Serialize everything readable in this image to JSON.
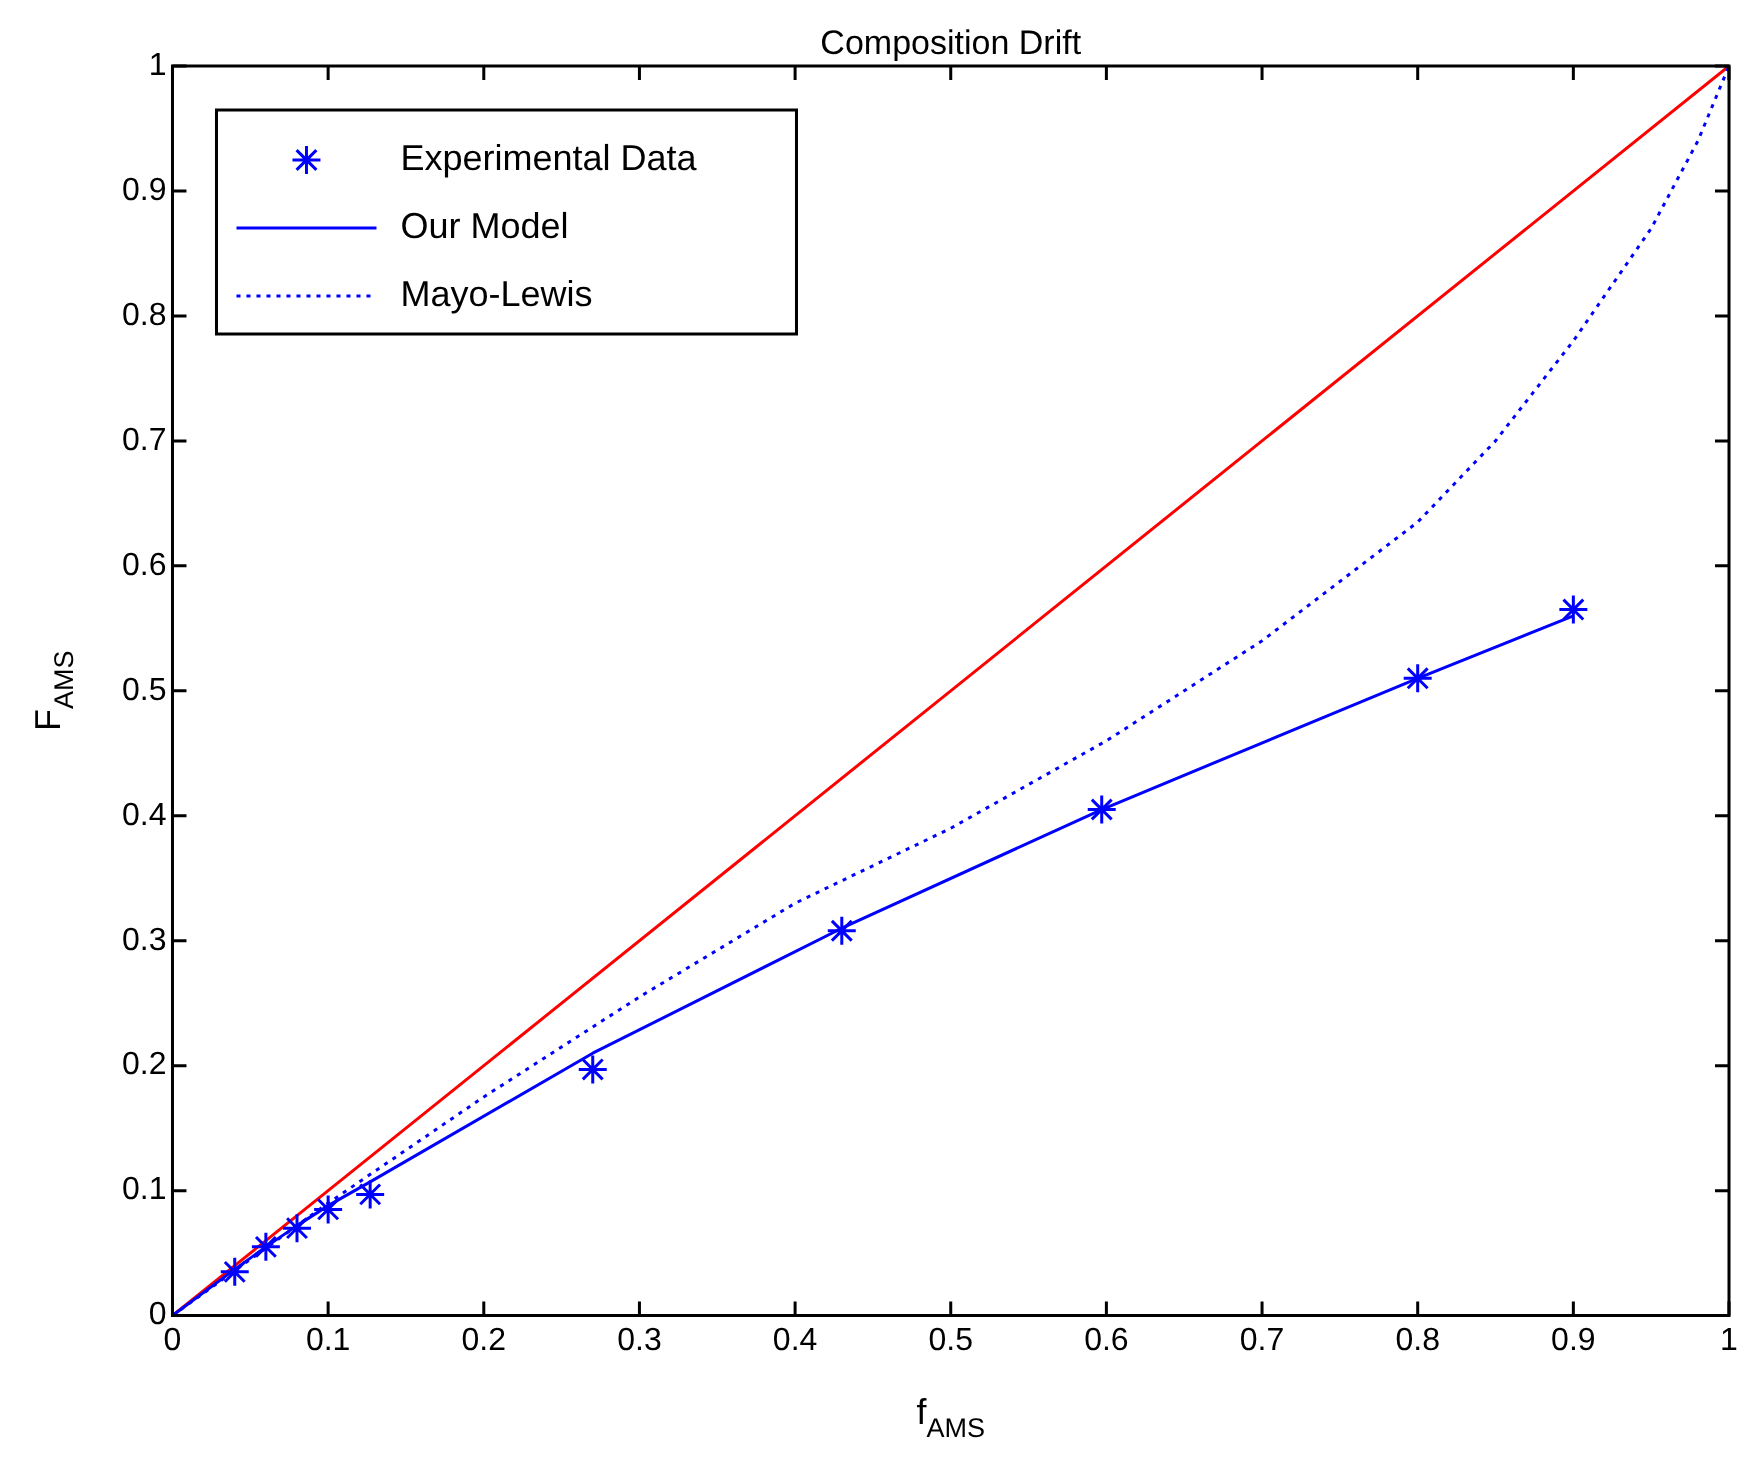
{
  "chart_data": {
    "type": "line",
    "title": "Composition Drift",
    "xlabel": "f$_{AMS}$",
    "ylabel": "F$_{AMS}$",
    "xlim": [
      0,
      1
    ],
    "ylim": [
      0,
      1
    ],
    "xticks": [
      0,
      0.1,
      0.2,
      0.3,
      0.4,
      0.5,
      0.6,
      0.7,
      0.8,
      0.9,
      1
    ],
    "yticks": [
      0,
      0.1,
      0.2,
      0.3,
      0.4,
      0.5,
      0.6,
      0.7,
      0.8,
      0.9,
      1
    ],
    "grid": false,
    "legend": "top left",
    "series": [
      {
        "name": "Experimental Data",
        "type": "scatter",
        "marker": "cross",
        "color": "#0000ff",
        "x": [
          0.04,
          0.06,
          0.08,
          0.1,
          0.127,
          0.27,
          0.43,
          0.597,
          0.8,
          0.9
        ],
        "values": [
          0.035,
          0.055,
          0.07,
          0.085,
          0.097,
          0.197,
          0.308,
          0.405,
          0.51,
          0.565
        ]
      },
      {
        "name": "Our Model",
        "type": "line",
        "line_style": "solid",
        "color": "#0000ff",
        "x": [
          0,
          0.04,
          0.06,
          0.08,
          0.1,
          0.127,
          0.27,
          0.43,
          0.597,
          0.8,
          0.9
        ],
        "values": [
          0,
          0.037,
          0.055,
          0.072,
          0.088,
          0.107,
          0.21,
          0.31,
          0.405,
          0.51,
          0.56
        ]
      },
      {
        "name": "Mayo-Lewis",
        "type": "line",
        "line_style": "dotted",
        "color": "#0000ff",
        "x": [
          0,
          0.1,
          0.2,
          0.3,
          0.4,
          0.5,
          0.6,
          0.7,
          0.8,
          0.85,
          0.9,
          0.95,
          0.98,
          1
        ],
        "values": [
          0,
          0.09,
          0.175,
          0.255,
          0.33,
          0.39,
          0.46,
          0.54,
          0.635,
          0.7,
          0.78,
          0.87,
          0.94,
          1
        ]
      },
      {
        "type": "line",
        "line_style": "solid",
        "color": "#ff0000",
        "x": [
          0,
          0.5,
          1
        ],
        "values": [
          0,
          0.5,
          1
        ]
      }
    ]
  }
}
